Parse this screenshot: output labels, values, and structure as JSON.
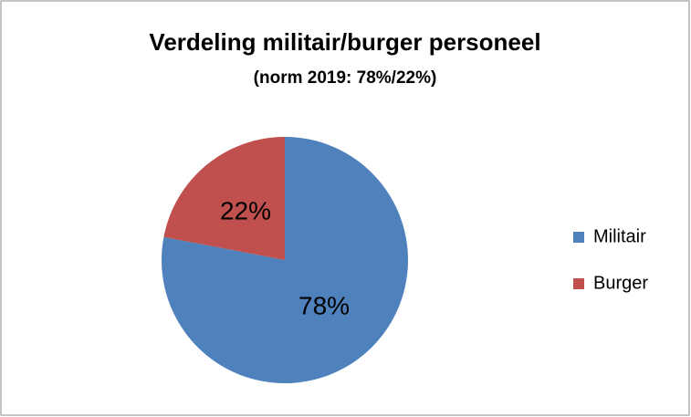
{
  "chart_data": {
    "type": "pie",
    "title": "Verdeling militair/burger personeel",
    "subtitle": "(norm 2019: 78%/22%)",
    "categories": [
      "Militair",
      "Burger"
    ],
    "values": [
      78,
      22
    ],
    "value_labels": [
      "78%",
      "22%"
    ],
    "colors": [
      "#4f81bd",
      "#c0504d"
    ],
    "legend": "right"
  }
}
